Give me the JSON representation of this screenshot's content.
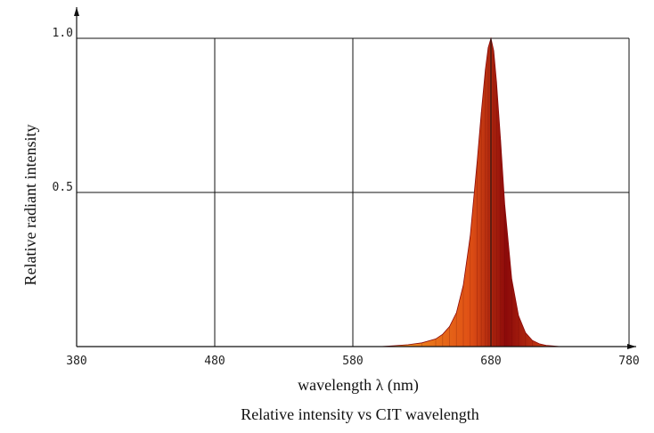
{
  "chart_data": {
    "type": "area",
    "title": "Relative intensity  vs CIT  wavelength",
    "xlabel": "wavelength λ   (nm)",
    "ylabel": "Relative radiant intensity",
    "xlim": [
      380,
      780
    ],
    "ylim": [
      0,
      1.0
    ],
    "x_ticks": [
      380,
      480,
      580,
      680,
      780
    ],
    "x_tick_labels": [
      "380",
      "480",
      "580",
      "680",
      "780"
    ],
    "y_ticks": [
      0.5,
      1.0
    ],
    "y_tick_labels": [
      "0.5",
      "1.0"
    ],
    "grid": true,
    "colors": {
      "fill_low": "#f4a020",
      "fill_mid": "#e05015",
      "fill_high": "#8c0a0a",
      "grid": "#111111"
    },
    "series": [
      {
        "x": [
          600,
          610,
          620,
          630,
          640,
          645,
          650,
          655,
          660,
          665,
          670,
          673,
          676,
          678,
          680,
          682,
          684,
          687,
          690,
          695,
          700,
          705,
          710,
          715,
          720,
          725,
          730
        ],
        "y": [
          0.0,
          0.003,
          0.006,
          0.012,
          0.025,
          0.04,
          0.065,
          0.11,
          0.2,
          0.36,
          0.6,
          0.76,
          0.9,
          0.97,
          1.0,
          0.96,
          0.86,
          0.67,
          0.46,
          0.22,
          0.1,
          0.045,
          0.02,
          0.009,
          0.004,
          0.002,
          0.0
        ]
      }
    ]
  }
}
